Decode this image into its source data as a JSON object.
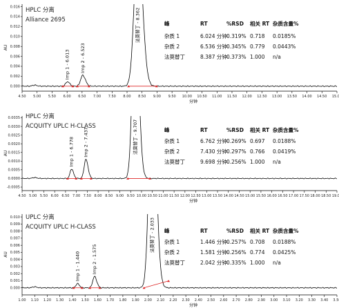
{
  "chart_data": [
    {
      "type": "line",
      "title_lines": [
        "HPLC 分离",
        "Alliance 2695"
      ],
      "xlabel": "分钟",
      "ylabel": "AU",
      "xlim": [
        4.5,
        15.0
      ],
      "ylim": [
        -0.001,
        0.0165
      ],
      "x_ticks": [
        "4.50",
        "5.00",
        "5.50",
        "6.00",
        "6.50",
        "7.00",
        "7.50",
        "8.00",
        "8.50",
        "9.00",
        "9.50",
        "10.00",
        "10.50",
        "11.00",
        "11.50",
        "12.00",
        "12.50",
        "13.00",
        "13.50",
        "14.00",
        "14.50",
        "15.00"
      ],
      "y_ticks": [
        "0.000",
        "0.002",
        "0.004",
        "0.006",
        "0.008",
        "0.010",
        "0.012",
        "0.014",
        "0.016"
      ],
      "peaks": [
        {
          "label": "Imp 1 - 6.013",
          "rt": 6.013,
          "height": 0.0009,
          "width": 0.06
        },
        {
          "label": "Imp 2 - 6.523",
          "rt": 6.523,
          "height": 0.0022,
          "width": 0.07
        },
        {
          "label": "法莫替丁 - 8.362",
          "rt": 8.362,
          "height": 0.03,
          "width": 0.12
        }
      ],
      "table": {
        "headers": [
          "峰",
          "RT",
          "%RSD",
          "相关 RT",
          "杂质含量%"
        ],
        "rows": [
          [
            "杂质 1",
            "6.024 分钟",
            "0.319%",
            "0.718",
            "0.0185%"
          ],
          [
            "杂质 2",
            "6.536 分钟",
            "0.345%",
            "0.779",
            "0.0443%"
          ],
          [
            "法莫替丁",
            "8.387 分钟",
            "0.373%",
            "1.000",
            "n/a"
          ]
        ]
      }
    },
    {
      "type": "line",
      "title_lines": [
        "HPLC 分离",
        "ACQUITY UPLC H-CLASS"
      ],
      "xlabel": "分钟",
      "ylabel": "AU",
      "xlim": [
        4.5,
        19.0
      ],
      "ylim": [
        -0.0007,
        0.0036
      ],
      "x_ticks": [
        "4.50",
        "5.00",
        "5.50",
        "6.00",
        "6.50",
        "7.00",
        "7.50",
        "8.00",
        "8.50",
        "9.00",
        "9.50",
        "10.00",
        "10.50",
        "11.00",
        "11.50",
        "12.00",
        "12.50",
        "13.00",
        "13.50",
        "14.00",
        "14.50",
        "15.00",
        "15.50",
        "16.00",
        "16.50",
        "17.00",
        "17.50",
        "18.00",
        "18.50",
        "19.00"
      ],
      "y_ticks": [
        "-0.0005",
        "0.0000",
        "0.0005",
        "0.0010",
        "0.0015",
        "0.0020",
        "0.0025",
        "0.0030",
        "0.0035"
      ],
      "peaks": [
        {
          "label": "Imp 1 - 6.778",
          "rt": 6.778,
          "height": 0.00055,
          "width": 0.07
        },
        {
          "label": "Imp 2 - 7.437",
          "rt": 7.437,
          "height": 0.0011,
          "width": 0.08
        },
        {
          "label": "法莫替丁 - 9.707",
          "rt": 9.707,
          "height": 0.01,
          "width": 0.13
        }
      ],
      "table": {
        "headers": [
          "峰",
          "RT",
          "%RSD",
          "相关 RT",
          "杂质含量%"
        ],
        "rows": [
          [
            "杂质 1",
            "6.762 分钟",
            "0.269%",
            "0.697",
            "0.0188%"
          ],
          [
            "杂质 2",
            "7.430 分钟",
            "0.297%",
            "0.766",
            "0.0419%"
          ],
          [
            "法莫替丁",
            "9.698 分钟",
            "0.256%",
            "1.000",
            "n/a"
          ]
        ]
      }
    },
    {
      "type": "line",
      "title_lines": [
        "UPLC 分离",
        "ACQUITY UPLC H-CLASS"
      ],
      "xlabel": "分钟",
      "ylabel": "AU",
      "xlim": [
        1.0,
        3.5
      ],
      "ylim": [
        -0.001,
        0.0104
      ],
      "x_ticks": [
        "1.00",
        "1.10",
        "1.20",
        "1.30",
        "1.40",
        "1.50",
        "1.60",
        "1.70",
        "1.80",
        "1.90",
        "2.00",
        "2.10",
        "2.20",
        "2.30",
        "2.40",
        "2.50",
        "2.60",
        "2.70",
        "2.80",
        "2.90",
        "3.00",
        "3.10",
        "3.20",
        "3.30",
        "3.40",
        "3.50"
      ],
      "y_ticks": [
        "0.000",
        "0.001",
        "0.002",
        "0.003",
        "0.004",
        "0.005",
        "0.006",
        "0.007",
        "0.008",
        "0.009",
        "0.010"
      ],
      "peaks": [
        {
          "label": "Imp 1 - 1.440",
          "rt": 1.44,
          "height": 0.0006,
          "width": 0.012
        },
        {
          "label": "Imp 2 - 1.575",
          "rt": 1.575,
          "height": 0.0016,
          "width": 0.014
        },
        {
          "label": "法莫替丁 - 2.033",
          "rt": 2.033,
          "height": 0.03,
          "width": 0.025
        }
      ],
      "table": {
        "headers": [
          "峰",
          "RT",
          "%RSD",
          "相关 RT",
          "杂质含量%"
        ],
        "rows": [
          [
            "杂质 1",
            "1.446 分钟",
            "0.257%",
            "0.708",
            "0.0188%"
          ],
          [
            "杂质 2",
            "1.581 分钟",
            "0.256%",
            "0.774",
            "0.0425%"
          ],
          [
            "法莫替丁",
            "2.042 分钟",
            "0.335%",
            "1.000",
            "n/a"
          ]
        ]
      }
    }
  ]
}
